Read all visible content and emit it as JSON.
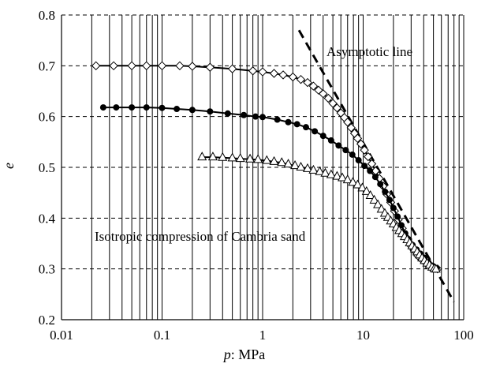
{
  "chart_data": {
    "type": "scatter",
    "title": "",
    "xlabel_var": "p",
    "xlabel_unit": ": MPa",
    "ylabel": "e",
    "xscale": "log",
    "xlim": [
      0.01,
      100
    ],
    "ylim": [
      0.2,
      0.8
    ],
    "x_ticks": [
      "0.01",
      "0.1",
      "1",
      "10",
      "100"
    ],
    "y_ticks": [
      "0.2",
      "0.3",
      "0.4",
      "0.5",
      "0.6",
      "0.7",
      "0.8"
    ],
    "grid": {
      "x_minor_vertical": true,
      "y_major_dashed": true
    },
    "annotations": {
      "asymptote": "Asymptotic line",
      "caption": "Isotropic compression of Cambria sand"
    },
    "asymptote_line": [
      [
        2.3,
        0.77
      ],
      [
        80,
        0.235
      ]
    ],
    "series": [
      {
        "marker": "diamond",
        "points": [
          [
            0.022,
            0.7
          ],
          [
            0.033,
            0.7
          ],
          [
            0.05,
            0.7
          ],
          [
            0.07,
            0.7
          ],
          [
            0.1,
            0.7
          ],
          [
            0.15,
            0.7
          ],
          [
            0.2,
            0.699
          ],
          [
            0.3,
            0.697
          ],
          [
            0.5,
            0.694
          ],
          [
            0.8,
            0.69
          ],
          [
            1.0,
            0.688
          ],
          [
            1.3,
            0.685
          ],
          [
            1.6,
            0.682
          ],
          [
            2.0,
            0.678
          ],
          [
            2.4,
            0.673
          ],
          [
            2.8,
            0.667
          ],
          [
            3.2,
            0.66
          ],
          [
            3.6,
            0.652
          ],
          [
            4.0,
            0.645
          ],
          [
            4.5,
            0.636
          ],
          [
            5.0,
            0.626
          ],
          [
            5.5,
            0.617
          ],
          [
            6.0,
            0.607
          ],
          [
            6.5,
            0.598
          ],
          [
            7.0,
            0.589
          ],
          [
            7.6,
            0.578
          ],
          [
            8.2,
            0.567
          ],
          [
            8.8,
            0.557
          ],
          [
            9.5,
            0.546
          ],
          [
            10.3,
            0.534
          ],
          [
            11.2,
            0.521
          ],
          [
            12.2,
            0.507
          ],
          [
            13.3,
            0.493
          ],
          [
            14.5,
            0.478
          ],
          [
            15.8,
            0.463
          ],
          [
            17.2,
            0.447
          ],
          [
            18.8,
            0.431
          ],
          [
            20.5,
            0.414
          ],
          [
            22.4,
            0.397
          ],
          [
            24.5,
            0.38
          ],
          [
            26.8,
            0.362
          ],
          [
            29.3,
            0.347
          ],
          [
            32.0,
            0.337
          ],
          [
            35.0,
            0.326
          ],
          [
            38.5,
            0.318
          ],
          [
            42.5,
            0.311
          ],
          [
            47.0,
            0.305
          ],
          [
            52.0,
            0.301
          ],
          [
            55.0,
            0.3
          ]
        ],
        "fit_curve": true
      },
      {
        "marker": "filled-circle",
        "points": [
          [
            0.026,
            0.618
          ],
          [
            0.035,
            0.618
          ],
          [
            0.05,
            0.618
          ],
          [
            0.07,
            0.618
          ],
          [
            0.1,
            0.617
          ],
          [
            0.14,
            0.615
          ],
          [
            0.2,
            0.613
          ],
          [
            0.3,
            0.61
          ],
          [
            0.45,
            0.606
          ],
          [
            0.65,
            0.603
          ],
          [
            0.85,
            0.6
          ],
          [
            1.0,
            0.599
          ],
          [
            1.4,
            0.594
          ],
          [
            1.8,
            0.589
          ],
          [
            2.2,
            0.585
          ],
          [
            2.7,
            0.579
          ],
          [
            3.3,
            0.571
          ],
          [
            4.0,
            0.562
          ],
          [
            4.8,
            0.553
          ],
          [
            5.7,
            0.543
          ],
          [
            6.7,
            0.534
          ],
          [
            7.8,
            0.525
          ],
          [
            9.0,
            0.514
          ],
          [
            10.3,
            0.503
          ],
          [
            11.7,
            0.493
          ],
          [
            13.2,
            0.481
          ],
          [
            14.8,
            0.467
          ],
          [
            16.5,
            0.452
          ],
          [
            18.3,
            0.436
          ],
          [
            20.0,
            0.42
          ],
          [
            22.0,
            0.403
          ],
          [
            24.0,
            0.386
          ],
          [
            26.2,
            0.37
          ],
          [
            28.5,
            0.358
          ],
          [
            31.0,
            0.347
          ],
          [
            34.0,
            0.338
          ],
          [
            37.0,
            0.33
          ],
          [
            40.5,
            0.322
          ],
          [
            44.5,
            0.313
          ],
          [
            49.0,
            0.306
          ],
          [
            54.0,
            0.301
          ]
        ],
        "fit_curve": true
      },
      {
        "marker": "triangle",
        "points": [
          [
            0.25,
            0.52
          ],
          [
            0.32,
            0.52
          ],
          [
            0.4,
            0.519
          ],
          [
            0.5,
            0.518
          ],
          [
            0.6,
            0.517
          ],
          [
            0.75,
            0.516
          ],
          [
            0.9,
            0.515
          ],
          [
            1.1,
            0.513
          ],
          [
            1.3,
            0.511
          ],
          [
            1.55,
            0.509
          ],
          [
            1.8,
            0.506
          ],
          [
            2.1,
            0.503
          ],
          [
            2.4,
            0.5
          ],
          [
            2.8,
            0.497
          ],
          [
            3.2,
            0.494
          ],
          [
            3.7,
            0.491
          ],
          [
            4.2,
            0.488
          ],
          [
            4.8,
            0.485
          ],
          [
            5.5,
            0.482
          ],
          [
            6.2,
            0.479
          ],
          [
            7.0,
            0.475
          ],
          [
            7.9,
            0.47
          ],
          [
            8.8,
            0.465
          ],
          [
            9.8,
            0.459
          ],
          [
            10.8,
            0.452
          ],
          [
            11.8,
            0.444
          ],
          [
            12.9,
            0.435
          ],
          [
            14.0,
            0.426
          ],
          [
            15.2,
            0.417
          ],
          [
            16.4,
            0.409
          ],
          [
            17.6,
            0.401
          ],
          [
            18.8,
            0.394
          ],
          [
            20.0,
            0.388
          ],
          [
            21.4,
            0.381
          ],
          [
            22.8,
            0.375
          ],
          [
            24.3,
            0.369
          ],
          [
            25.8,
            0.363
          ],
          [
            27.4,
            0.357
          ],
          [
            29.0,
            0.351
          ],
          [
            30.7,
            0.345
          ],
          [
            32.5,
            0.339
          ],
          [
            34.4,
            0.333
          ],
          [
            36.4,
            0.327
          ],
          [
            38.5,
            0.321
          ],
          [
            40.8,
            0.316
          ],
          [
            43.2,
            0.311
          ],
          [
            45.7,
            0.307
          ],
          [
            48.4,
            0.303
          ],
          [
            51.0,
            0.3
          ],
          [
            53.0,
            0.299
          ]
        ],
        "fit_curve": true
      }
    ]
  }
}
